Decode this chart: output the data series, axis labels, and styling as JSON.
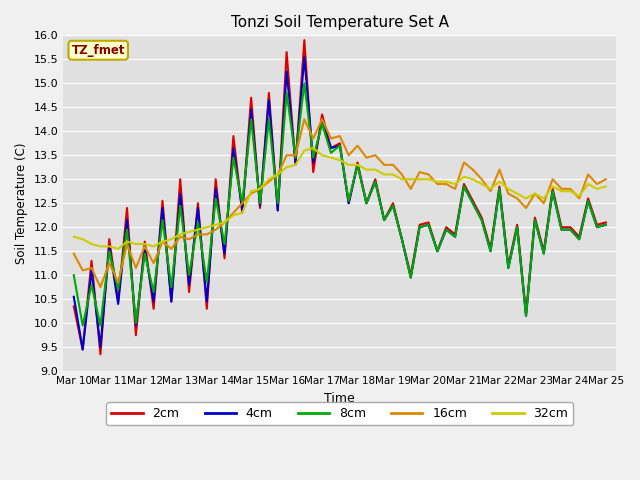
{
  "title": "Tonzi Soil Temperature Set A",
  "xlabel": "Time",
  "ylabel": "Soil Temperature (C)",
  "ylim": [
    9.0,
    16.0
  ],
  "annotation": "TZ_fmet",
  "series_2cm": {
    "color": "#dd0000",
    "linewidth": 1.5,
    "y": [
      10.35,
      9.45,
      11.3,
      9.35,
      11.75,
      10.45,
      12.4,
      9.75,
      11.7,
      10.3,
      12.55,
      10.45,
      13.0,
      10.65,
      12.5,
      10.3,
      13.0,
      11.35,
      13.9,
      12.3,
      14.7,
      12.4,
      14.8,
      12.35,
      15.65,
      13.3,
      15.9,
      13.15,
      14.35,
      13.65,
      13.75,
      12.5,
      13.35,
      12.5,
      13.0,
      12.15,
      12.5,
      11.75,
      11.0,
      12.05,
      12.1,
      11.5,
      12.0,
      11.85,
      12.9,
      12.55,
      12.2,
      11.55,
      12.85,
      11.2,
      12.05,
      10.2,
      12.2,
      11.5,
      12.8,
      12.0,
      12.0,
      11.8,
      12.6,
      12.05,
      12.1
    ]
  },
  "series_4cm": {
    "color": "#0000cc",
    "linewidth": 1.5,
    "y": [
      10.55,
      9.45,
      11.1,
      9.5,
      11.6,
      10.4,
      12.15,
      9.95,
      11.55,
      10.45,
      12.4,
      10.45,
      12.7,
      10.8,
      12.4,
      10.45,
      12.8,
      11.45,
      13.65,
      12.35,
      14.45,
      12.45,
      14.65,
      12.35,
      15.25,
      13.35,
      15.55,
      13.35,
      14.2,
      13.65,
      13.7,
      12.5,
      13.3,
      12.5,
      12.95,
      12.15,
      12.45,
      11.75,
      10.95,
      12.0,
      12.05,
      11.5,
      11.95,
      11.8,
      12.85,
      12.5,
      12.15,
      11.5,
      12.8,
      11.15,
      12.0,
      10.15,
      12.15,
      11.45,
      12.75,
      11.95,
      11.95,
      11.75,
      12.55,
      12.0,
      12.05
    ]
  },
  "series_8cm": {
    "color": "#00aa00",
    "linewidth": 1.5,
    "y": [
      11.0,
      9.95,
      10.8,
      9.95,
      11.5,
      10.7,
      11.95,
      10.0,
      11.45,
      10.65,
      12.15,
      10.75,
      12.45,
      11.0,
      12.1,
      10.85,
      12.6,
      11.65,
      13.45,
      12.5,
      14.25,
      12.5,
      14.25,
      12.5,
      14.8,
      13.45,
      15.0,
      13.45,
      14.15,
      13.55,
      13.7,
      12.55,
      13.3,
      12.5,
      12.95,
      12.15,
      12.45,
      11.75,
      10.95,
      12.0,
      12.05,
      11.5,
      11.95,
      11.8,
      12.85,
      12.5,
      12.15,
      11.5,
      12.8,
      11.15,
      12.0,
      10.15,
      12.15,
      11.45,
      12.75,
      11.95,
      11.95,
      11.75,
      12.55,
      12.0,
      12.05
    ]
  },
  "series_16cm": {
    "color": "#dd8800",
    "linewidth": 1.5,
    "y": [
      11.45,
      11.1,
      11.15,
      10.75,
      11.25,
      10.85,
      11.65,
      11.15,
      11.6,
      11.25,
      11.7,
      11.55,
      11.8,
      11.75,
      11.85,
      11.85,
      11.95,
      12.1,
      12.3,
      12.5,
      12.7,
      12.8,
      12.95,
      13.1,
      13.5,
      13.5,
      14.25,
      13.85,
      14.25,
      13.85,
      13.9,
      13.5,
      13.7,
      13.45,
      13.5,
      13.3,
      13.3,
      13.1,
      12.8,
      13.15,
      13.1,
      12.9,
      12.9,
      12.8,
      13.35,
      13.2,
      13.0,
      12.75,
      13.2,
      12.7,
      12.6,
      12.4,
      12.7,
      12.5,
      13.0,
      12.8,
      12.8,
      12.6,
      13.1,
      12.9,
      13.0
    ]
  },
  "series_32cm": {
    "color": "#cccc00",
    "linewidth": 1.5,
    "y": [
      11.8,
      11.75,
      11.65,
      11.6,
      11.6,
      11.55,
      11.7,
      11.65,
      11.65,
      11.6,
      11.7,
      11.75,
      11.85,
      11.9,
      11.95,
      12.0,
      12.05,
      12.1,
      12.25,
      12.3,
      12.75,
      12.8,
      13.0,
      13.1,
      13.25,
      13.3,
      13.6,
      13.65,
      13.5,
      13.45,
      13.4,
      13.3,
      13.3,
      13.2,
      13.2,
      13.1,
      13.1,
      13.0,
      13.0,
      13.0,
      13.0,
      12.95,
      12.95,
      12.9,
      13.05,
      13.0,
      12.9,
      12.8,
      12.95,
      12.8,
      12.7,
      12.6,
      12.7,
      12.6,
      12.85,
      12.75,
      12.75,
      12.65,
      12.9,
      12.8,
      12.85
    ]
  },
  "xtick_labels": [
    "Mar 10",
    "Mar 11",
    "Mar 12",
    "Mar 13",
    "Mar 14",
    "Mar 15",
    "Mar 16",
    "Mar 17",
    "Mar 18",
    "Mar 19",
    "Mar 20",
    "Mar 21",
    "Mar 22",
    "Mar 23",
    "Mar 24",
    "Mar 25"
  ],
  "legend_labels": [
    "2cm",
    "4cm",
    "8cm",
    "16cm",
    "32cm"
  ],
  "legend_colors": [
    "#dd0000",
    "#0000cc",
    "#00aa00",
    "#dd8800",
    "#cccc00"
  ],
  "bg_color": "#e0e0e0",
  "fig_bg": "#f0f0f0"
}
